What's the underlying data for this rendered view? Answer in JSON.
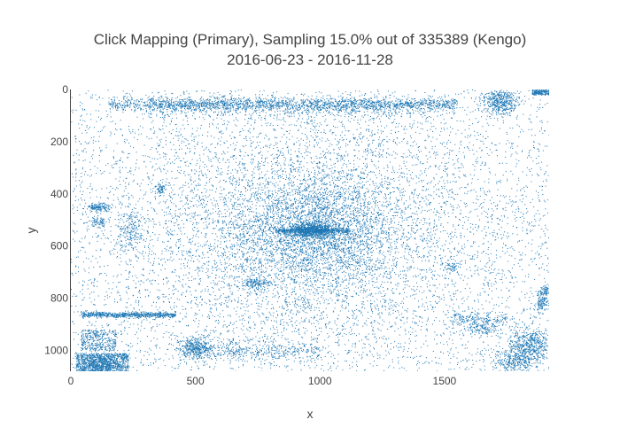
{
  "chart_data": {
    "type": "scatter",
    "title": "Click Mapping (Primary), Sampling 15.0% out of 335389 (Kengo)",
    "subtitle": "2016-06-23 - 2016-11-28",
    "xlabel": "x",
    "ylabel": "y",
    "xlim": [
      0,
      1920
    ],
    "ylim": [
      1080,
      0
    ],
    "y_reversed": true,
    "xticks": [
      0,
      500,
      1000,
      1500
    ],
    "yticks": [
      0,
      200,
      400,
      600,
      800,
      1000
    ],
    "marker_color": "#1f77b4",
    "grid": false,
    "legend": "none",
    "sample_rate_percent": 15.0,
    "total_clicks": 335389,
    "density_clusters": [
      {
        "region": "center",
        "x": 970,
        "y": 540,
        "weight": "very high"
      },
      {
        "region": "top banner band",
        "x_range": [
          150,
          1550
        ],
        "y": 55,
        "weight": "high"
      },
      {
        "region": "top-right corner",
        "x": 1720,
        "y": 45,
        "weight": "high"
      },
      {
        "region": "bottom-left block",
        "x": 110,
        "y": 1050,
        "weight": "very high"
      },
      {
        "region": "bottom-right corner",
        "x": 1840,
        "y": 980,
        "weight": "high"
      },
      {
        "region": "lower band",
        "x_range": [
          40,
          420
        ],
        "y": 862,
        "weight": "high"
      },
      {
        "region": "lower-middle",
        "x": 500,
        "y": 985,
        "weight": "medium"
      },
      {
        "region": "left",
        "x": 110,
        "y": 450,
        "weight": "medium"
      },
      {
        "region": "right edge",
        "x": 1890,
        "y": 810,
        "weight": "medium"
      },
      {
        "region": "mid",
        "x": 740,
        "y": 740,
        "weight": "low"
      }
    ]
  }
}
